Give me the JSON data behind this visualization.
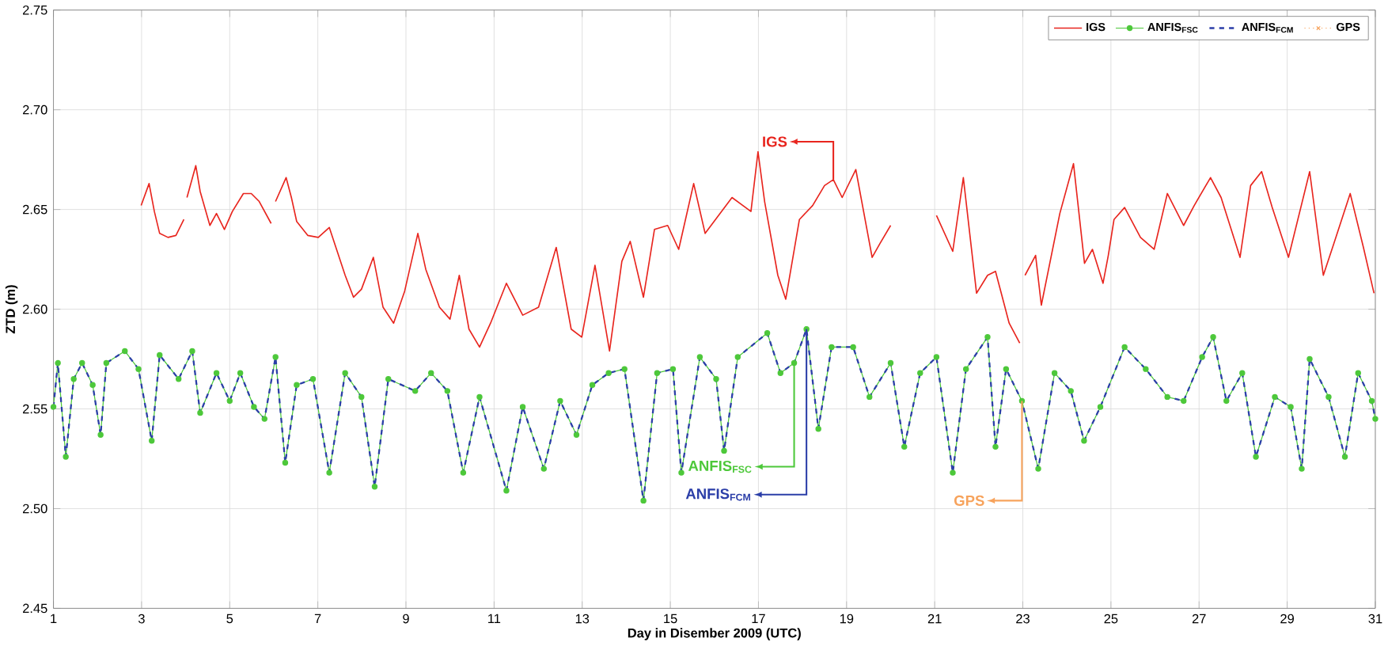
{
  "chart_data": {
    "type": "line",
    "xlabel": "Day in Disember 2009 (UTC)",
    "ylabel": "ZTD (m)",
    "xlim": [
      1,
      31
    ],
    "ylim": [
      2.45,
      2.75
    ],
    "xticks": [
      1,
      3,
      5,
      7,
      9,
      11,
      13,
      15,
      17,
      19,
      21,
      23,
      25,
      27,
      29,
      31
    ],
    "yticks": [
      {
        "value": 2.45,
        "label": "2.45"
      },
      {
        "value": 2.5,
        "label": "2.50"
      },
      {
        "value": 2.55,
        "label": "2.55"
      },
      {
        "value": 2.6,
        "label": "2.60"
      },
      {
        "value": 2.65,
        "label": "2.65"
      },
      {
        "value": 2.7,
        "label": "2.70"
      },
      {
        "value": 2.75,
        "label": "2.75"
      }
    ],
    "grid": true,
    "legend": "top right",
    "series": [
      {
        "name": "IGS",
        "color": "#e8251e",
        "marker": "none",
        "line_style": "solid",
        "x": [
          2.99,
          3.17,
          3.29,
          3.41,
          3.6,
          3.78,
          3.96,
          4.0,
          4.03,
          4.23,
          4.33,
          4.55,
          4.7,
          4.88,
          5.06,
          5.31,
          5.49,
          5.67,
          5.94,
          6.0,
          6.04,
          6.28,
          6.4,
          6.52,
          6.77,
          7.01,
          7.26,
          7.44,
          7.62,
          7.81,
          7.99,
          8.26,
          8.48,
          8.72,
          8.97,
          9.27,
          9.45,
          9.76,
          10.0,
          10.21,
          10.43,
          10.67,
          10.92,
          11.28,
          11.65,
          12.01,
          12.41,
          12.75,
          12.99,
          13.29,
          13.62,
          13.9,
          14.09,
          14.39,
          14.64,
          14.94,
          15.19,
          15.53,
          15.79,
          16.4,
          16.83,
          16.99,
          17.14,
          17.44,
          17.62,
          17.93,
          18.23,
          18.5,
          18.7,
          18.9,
          19.21,
          19.58,
          19.76,
          20.0,
          20.5,
          21.04,
          21.41,
          21.65,
          21.95,
          22.2,
          22.38,
          22.69,
          22.93,
          23.0,
          23.05,
          23.29,
          23.42,
          23.84,
          24.15,
          24.4,
          24.58,
          24.82,
          24.94,
          25.07,
          25.31,
          25.67,
          25.98,
          26.28,
          26.65,
          26.89,
          27.26,
          27.5,
          27.93,
          28.17,
          28.42,
          28.66,
          29.03,
          29.51,
          29.82,
          30.06,
          30.43,
          30.73,
          30.97
        ],
        "values": [
          2.652,
          2.663,
          2.649,
          2.638,
          2.636,
          2.637,
          2.645,
          null,
          2.656,
          2.672,
          2.659,
          2.642,
          2.648,
          2.64,
          2.649,
          2.658,
          2.658,
          2.654,
          2.643,
          null,
          2.654,
          2.666,
          2.656,
          2.644,
          2.637,
          2.636,
          2.641,
          2.629,
          2.617,
          2.606,
          2.61,
          2.626,
          2.601,
          2.593,
          2.609,
          2.638,
          2.62,
          2.601,
          2.595,
          2.617,
          2.59,
          2.581,
          2.593,
          2.613,
          2.597,
          2.601,
          2.631,
          2.59,
          2.586,
          2.622,
          2.579,
          2.624,
          2.634,
          2.606,
          2.64,
          2.642,
          2.63,
          2.663,
          2.638,
          2.656,
          2.649,
          2.679,
          2.654,
          2.617,
          2.605,
          2.645,
          2.652,
          2.662,
          2.665,
          2.656,
          2.67,
          2.626,
          2.633,
          2.642,
          null,
          2.647,
          2.629,
          2.666,
          2.608,
          2.617,
          2.619,
          2.593,
          2.583,
          null,
          2.617,
          2.627,
          2.602,
          2.648,
          2.673,
          2.623,
          2.63,
          2.613,
          2.627,
          2.645,
          2.651,
          2.636,
          2.63,
          2.658,
          2.642,
          2.652,
          2.666,
          2.656,
          2.626,
          2.662,
          2.669,
          2.651,
          2.626,
          2.669,
          2.617,
          2.633,
          2.658,
          2.631,
          2.608
        ]
      },
      {
        "name": "ANFIS$_{FSC}$",
        "color": "#4dc83a",
        "marker": "circle",
        "line_style": "solid",
        "x": [
          1.0,
          1.1,
          1.28,
          1.46,
          1.65,
          1.89,
          2.07,
          2.2,
          2.62,
          2.93,
          3.23,
          3.41,
          3.84,
          4.15,
          4.33,
          4.7,
          5.0,
          5.24,
          5.55,
          5.79,
          6.04,
          6.26,
          6.52,
          6.89,
          7.26,
          7.62,
          7.99,
          8.29,
          8.6,
          9.21,
          9.57,
          9.94,
          10.3,
          10.67,
          11.28,
          11.65,
          12.13,
          12.5,
          12.87,
          13.23,
          13.6,
          13.96,
          14.39,
          14.7,
          15.06,
          15.25,
          15.67,
          16.04,
          16.22,
          16.53,
          17.2,
          17.5,
          17.81,
          18.09,
          18.36,
          18.66,
          19.15,
          19.52,
          20.0,
          20.31,
          20.67,
          21.04,
          21.41,
          21.71,
          22.2,
          22.38,
          22.62,
          22.98,
          23.35,
          23.72,
          24.09,
          24.39,
          24.76,
          25.31,
          25.79,
          26.28,
          26.65,
          27.07,
          27.32,
          27.62,
          27.98,
          28.29,
          28.72,
          29.08,
          29.33,
          29.51,
          29.94,
          30.31,
          30.61,
          30.92,
          31.0
        ],
        "values": [
          2.551,
          2.573,
          2.526,
          2.565,
          2.573,
          2.562,
          2.537,
          2.573,
          2.579,
          2.57,
          2.534,
          2.577,
          2.565,
          2.579,
          2.548,
          2.568,
          2.554,
          2.568,
          2.551,
          2.545,
          2.576,
          2.523,
          2.562,
          2.565,
          2.518,
          2.568,
          2.556,
          2.511,
          2.565,
          2.559,
          2.568,
          2.559,
          2.518,
          2.556,
          2.509,
          2.551,
          2.52,
          2.554,
          2.537,
          2.562,
          2.568,
          2.57,
          2.504,
          2.568,
          2.57,
          2.518,
          2.576,
          2.565,
          2.529,
          2.576,
          2.588,
          2.568,
          2.573,
          2.59,
          2.54,
          2.581,
          2.581,
          2.556,
          2.573,
          2.531,
          2.568,
          2.576,
          2.518,
          2.57,
          2.586,
          2.531,
          2.57,
          2.554,
          2.52,
          2.568,
          2.559,
          2.534,
          2.551,
          2.581,
          2.57,
          2.556,
          2.554,
          2.576,
          2.586,
          2.554,
          2.568,
          2.526,
          2.556,
          2.551,
          2.52,
          2.575,
          2.556,
          2.526,
          2.568,
          2.554,
          2.545
        ]
      },
      {
        "name": "ANFIS$_{FCM}$",
        "color": "#2b3ea8",
        "marker": "none",
        "line_style": "dashed",
        "x": [
          1.0,
          1.1,
          1.28,
          1.46,
          1.65,
          1.89,
          2.07,
          2.2,
          2.62,
          2.93,
          3.23,
          3.41,
          3.84,
          4.15,
          4.33,
          4.7,
          5.0,
          5.24,
          5.55,
          5.79,
          6.04,
          6.26,
          6.52,
          6.89,
          7.26,
          7.62,
          7.99,
          8.29,
          8.6,
          9.21,
          9.57,
          9.94,
          10.3,
          10.67,
          11.28,
          11.65,
          12.13,
          12.5,
          12.87,
          13.23,
          13.6,
          13.96,
          14.39,
          14.7,
          15.06,
          15.25,
          15.67,
          16.04,
          16.22,
          16.53,
          17.2,
          17.5,
          17.81,
          18.09,
          18.36,
          18.66,
          19.15,
          19.52,
          20.0,
          20.31,
          20.67,
          21.04,
          21.41,
          21.71,
          22.2,
          22.38,
          22.62,
          22.98,
          23.35,
          23.72,
          24.09,
          24.39,
          24.76,
          25.31,
          25.79,
          26.28,
          26.65,
          27.07,
          27.32,
          27.62,
          27.98,
          28.29,
          28.72,
          29.08,
          29.33,
          29.51,
          29.94,
          30.31,
          30.61,
          30.92,
          31.0
        ],
        "values": [
          2.551,
          2.573,
          2.526,
          2.565,
          2.573,
          2.562,
          2.537,
          2.573,
          2.579,
          2.57,
          2.534,
          2.577,
          2.565,
          2.579,
          2.548,
          2.568,
          2.554,
          2.568,
          2.551,
          2.545,
          2.576,
          2.523,
          2.562,
          2.565,
          2.518,
          2.568,
          2.556,
          2.511,
          2.565,
          2.559,
          2.568,
          2.559,
          2.518,
          2.556,
          2.509,
          2.551,
          2.52,
          2.554,
          2.537,
          2.562,
          2.568,
          2.57,
          2.504,
          2.568,
          2.57,
          2.518,
          2.576,
          2.565,
          2.529,
          2.576,
          2.588,
          2.568,
          2.573,
          2.59,
          2.54,
          2.581,
          2.581,
          2.556,
          2.573,
          2.531,
          2.568,
          2.576,
          2.518,
          2.57,
          2.586,
          2.531,
          2.57,
          2.554,
          2.52,
          2.568,
          2.559,
          2.534,
          2.551,
          2.581,
          2.57,
          2.556,
          2.554,
          2.576,
          2.586,
          2.554,
          2.568,
          2.526,
          2.556,
          2.551,
          2.52,
          2.575,
          2.556,
          2.526,
          2.568,
          2.554,
          2.545
        ]
      },
      {
        "name": "GPS",
        "color": "#f7a35c",
        "marker": "cross",
        "line_style": "dotted"
      }
    ],
    "annotations": [
      {
        "text": "IGS",
        "x": 18.7,
        "y": 2.665
      },
      {
        "text": "ANFIS$_{FSC}$",
        "x": 17.81,
        "y": 2.573
      },
      {
        "text": "ANFIS$_{FCM}$",
        "x": 18.09,
        "y": 2.59
      },
      {
        "text": "GPS",
        "x": 22.98,
        "y": 2.554
      }
    ]
  }
}
